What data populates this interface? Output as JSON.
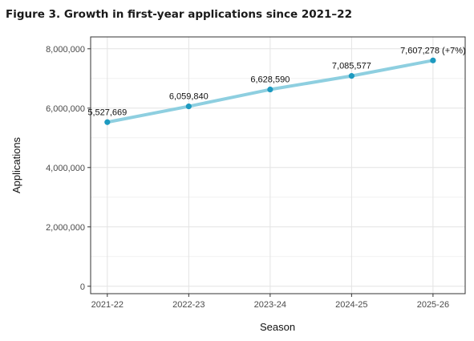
{
  "figure": {
    "title": "Figure 3. Growth in first-year applications since 2021–22"
  },
  "chart_data": {
    "type": "line",
    "title": "Figure 3. Growth in first-year applications since 2021–22",
    "xlabel": "Season",
    "ylabel": "Applications",
    "categories": [
      "2021-22",
      "2022-23",
      "2023-24",
      "2024-25",
      "2025-26"
    ],
    "series": [
      {
        "values": [
          5527669,
          6059840,
          6628590,
          7085577,
          7607278
        ],
        "color": "#8ecfe0",
        "marker_color": "#1d9ac0"
      }
    ],
    "data_labels": [
      "5,527,669",
      "6,059,840",
      "6,628,590",
      "7,085,577",
      "7,607,278 (+7%)"
    ],
    "ylim": [
      -250000,
      8400000
    ],
    "yticks": [
      0,
      2000000,
      4000000,
      6000000,
      8000000
    ],
    "ytick_labels": [
      "0",
      "2,000,000",
      "4,000,000",
      "6,000,000",
      "8,000,000"
    ],
    "grid": true,
    "legend": "none"
  }
}
